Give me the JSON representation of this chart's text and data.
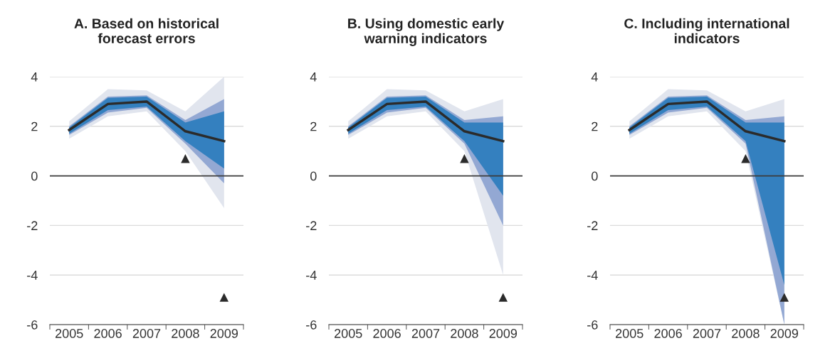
{
  "chart_data": [
    {
      "type": "line",
      "title": "A. Based on historical\nforecast errors",
      "categories": [
        "2005",
        "2006",
        "2007",
        "2008",
        "2009"
      ],
      "ylim": [
        -6,
        4
      ],
      "yticks": [
        -6,
        -4,
        -2,
        0,
        2,
        4
      ],
      "grid": "y",
      "ref_lines": [
        {
          "axis": "y",
          "value": 0,
          "color": "#3c3c3c"
        }
      ],
      "series": [
        {
          "color": "#e1e5ee",
          "values": [
            null,
            null,
            null,
            null,
            null
          ],
          "lower": [
            1.5,
            2.4,
            2.6,
            1.0,
            -1.3
          ],
          "upper": [
            2.2,
            3.5,
            3.45,
            2.6,
            4.0
          ]
        },
        {
          "color": "#93a8d3",
          "values": [
            null,
            null,
            null,
            null,
            null
          ],
          "lower": [
            1.65,
            2.55,
            2.75,
            1.3,
            -0.3
          ],
          "upper": [
            2.0,
            3.2,
            3.25,
            2.25,
            3.1
          ]
        },
        {
          "color": "#3480bf",
          "values": [
            null,
            null,
            null,
            null,
            null
          ],
          "lower": [
            1.7,
            2.65,
            2.8,
            1.4,
            0.3
          ],
          "upper": [
            1.95,
            3.15,
            3.2,
            2.15,
            2.6
          ]
        },
        {
          "color": "#2b2b2b",
          "values": [
            1.85,
            2.9,
            3.0,
            1.8,
            1.4
          ]
        },
        {
          "type": "scatter",
          "color": "#2b2b2b",
          "marker": "triangle",
          "values": [
            null,
            null,
            null,
            0.7,
            -4.9
          ]
        }
      ]
    },
    {
      "type": "line",
      "title": "B. Using domestic early\nwarning indicators",
      "categories": [
        "2005",
        "2006",
        "2007",
        "2008",
        "2009"
      ],
      "ylim": [
        -6,
        4
      ],
      "yticks": [
        -6,
        -4,
        -2,
        0,
        2,
        4
      ],
      "grid": "y",
      "ref_lines": [
        {
          "axis": "y",
          "value": 0,
          "color": "#3c3c3c"
        }
      ],
      "series": [
        {
          "color": "#e1e5ee",
          "values": [
            null,
            null,
            null,
            null,
            null
          ],
          "lower": [
            1.5,
            2.4,
            2.6,
            1.0,
            -4.0
          ],
          "upper": [
            2.2,
            3.5,
            3.45,
            2.6,
            3.1
          ]
        },
        {
          "color": "#93a8d3",
          "values": [
            null,
            null,
            null,
            null,
            null
          ],
          "lower": [
            1.65,
            2.55,
            2.75,
            1.3,
            -2.0
          ],
          "upper": [
            2.0,
            3.2,
            3.25,
            2.25,
            2.4
          ]
        },
        {
          "color": "#3480bf",
          "values": [
            null,
            null,
            null,
            null,
            null
          ],
          "lower": [
            1.7,
            2.65,
            2.8,
            1.4,
            -0.8
          ],
          "upper": [
            1.95,
            3.15,
            3.2,
            2.15,
            2.15
          ]
        },
        {
          "color": "#2b2b2b",
          "values": [
            1.85,
            2.9,
            3.0,
            1.8,
            1.4
          ]
        },
        {
          "type": "scatter",
          "color": "#2b2b2b",
          "marker": "triangle",
          "values": [
            null,
            null,
            null,
            0.7,
            -4.9
          ]
        }
      ]
    },
    {
      "type": "line",
      "title": "C. Including international\nindicators",
      "categories": [
        "2005",
        "2006",
        "2007",
        "2008",
        "2009"
      ],
      "ylim": [
        -6,
        4
      ],
      "yticks": [
        -6,
        -4,
        -2,
        0,
        2,
        4
      ],
      "grid": "y",
      "ref_lines": [
        {
          "axis": "y",
          "value": 0,
          "color": "#3c3c3c"
        }
      ],
      "series": [
        {
          "color": "#e1e5ee",
          "values": [
            null,
            null,
            null,
            null,
            null
          ],
          "lower": [
            1.5,
            2.4,
            2.6,
            1.0,
            -6
          ],
          "upper": [
            2.2,
            3.5,
            3.45,
            2.6,
            3.1
          ]
        },
        {
          "color": "#93a8d3",
          "values": [
            null,
            null,
            null,
            null,
            null
          ],
          "lower": [
            1.65,
            2.55,
            2.75,
            1.3,
            -6
          ],
          "upper": [
            2.0,
            3.2,
            3.25,
            2.25,
            2.4
          ]
        },
        {
          "color": "#3480bf",
          "values": [
            null,
            null,
            null,
            null,
            null
          ],
          "lower": [
            1.7,
            2.65,
            2.8,
            1.4,
            -4.4
          ],
          "upper": [
            1.95,
            3.15,
            3.2,
            2.15,
            2.15
          ]
        },
        {
          "color": "#2b2b2b",
          "values": [
            1.85,
            2.9,
            3.0,
            1.8,
            1.4
          ]
        },
        {
          "type": "scatter",
          "color": "#2b2b2b",
          "marker": "triangle",
          "values": [
            null,
            null,
            null,
            0.7,
            -4.9
          ]
        }
      ]
    }
  ]
}
